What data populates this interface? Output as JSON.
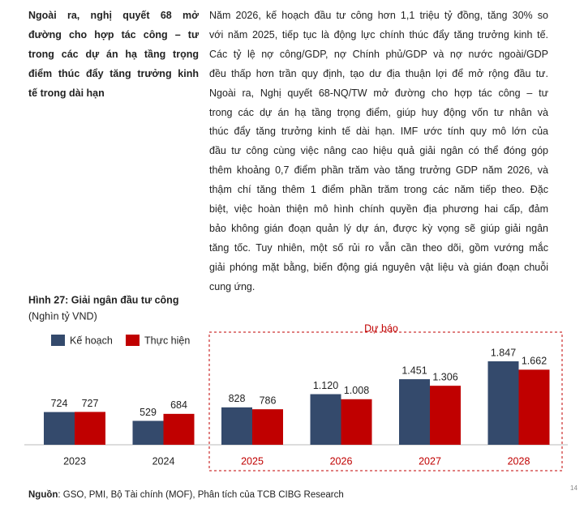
{
  "side_heading": [
    "Ngoài ra, nghị quyết 68 mở",
    "đường cho hợp tác công – tư",
    "trong các dự án hạ tầng trọng",
    "điểm thúc đẩy tăng trưởng kinh",
    "tế trong dài hạn"
  ],
  "body": [
    "Năm 2026, kế hoạch đầu tư công hơn 1,1 triệu tỷ đồng, tăng 30% so",
    "với năm 2025, tiếp tục là động lực chính thúc đẩy tăng trưởng kinh tế.",
    "Các tỷ lệ nợ công/GDP, nợ Chính phủ/GDP và nợ nước ngoài/GDP",
    "đều thấp hơn trần quy định, tạo dư địa thuận lợi để mở rộng đầu tư.",
    "Ngoài ra, Nghị quyết 68-NQ/TW mở đường cho hợp tác công – tư",
    "trong các dự án hạ tầng trọng điểm, giúp huy động vốn tư nhân và",
    "thúc đẩy tăng trưởng kinh tế dài hạn. IMF ước tính quy mô lớn của",
    "đầu tư công cùng việc nâng cao hiệu quả giải ngân có thể đóng góp",
    "thêm khoảng 0,7 điểm phần trăm vào tăng trưởng GDP năm 2026, và",
    "thậm chí tăng thêm 1 điểm phần trăm trong các năm tiếp theo. Đặc",
    "biệt, việc hoàn thiện mô hình chính quyền địa phương hai cấp, đảm",
    "bảo không gián đoạn quản lý dự án, được kỳ vọng sẽ giúp giải ngân",
    "tăng tốc. Tuy nhiên, một số rủi ro vẫn cần theo dõi, gồm vướng mắc",
    "giải phóng mặt bằng, biến động giá nguyên vật liệu và gián đoạn chuỗi",
    "cung ứng."
  ],
  "chart_data": {
    "type": "bar",
    "title": "Hình 27: Giải ngân đầu tư công",
    "subtitle": "(Nghìn tỷ VND)",
    "annotation": "Dự báo",
    "categories": [
      "2023",
      "2024",
      "2025",
      "2026",
      "2027",
      "2028"
    ],
    "category_colors": [
      "#222222",
      "#222222",
      "#c00000",
      "#c00000",
      "#c00000",
      "#c00000"
    ],
    "series": [
      {
        "name": "Kế hoạch",
        "color": "#344a6c",
        "values": [
          724,
          529,
          828,
          1120,
          1451,
          1847
        ],
        "value_labels": [
          "724",
          "529",
          "828",
          "1.120",
          "1.451",
          "1.847"
        ]
      },
      {
        "name": "Thực hiện",
        "color": "#c00000",
        "values": [
          727,
          684,
          786,
          1008,
          1306,
          1662
        ],
        "value_labels": [
          "727",
          "684",
          "786",
          "1.008",
          "1.306",
          "1.662"
        ]
      }
    ]
  },
  "source": {
    "label": "Nguồn",
    "text": ": GSO, PMI, Bộ Tài chính (MOF), Phân tích của TCB CIBG Research"
  },
  "page_number": "14"
}
